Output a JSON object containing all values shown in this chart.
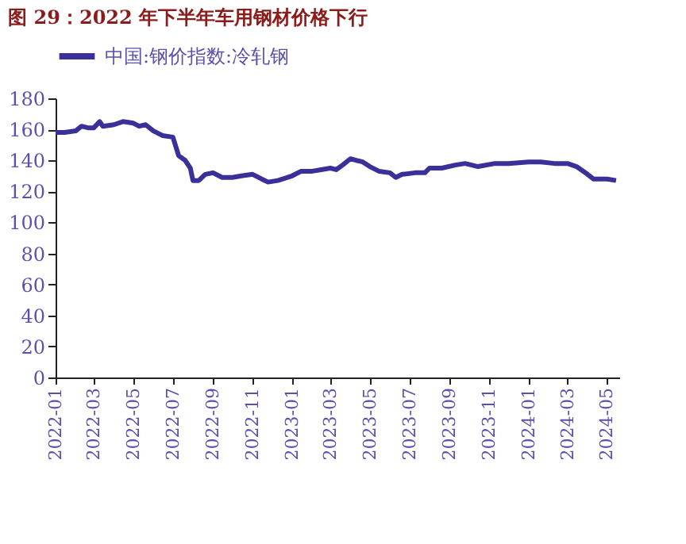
{
  "chart_data": {
    "type": "line",
    "title": "图 29：2022 年下半年车用钢材价格下行",
    "x": [
      "2022-01-01",
      "2022-01-15",
      "2022-02-01",
      "2022-02-10",
      "2022-02-20",
      "2022-03-01",
      "2022-03-10",
      "2022-03-15",
      "2022-04-01",
      "2022-04-15",
      "2022-05-01",
      "2022-05-10",
      "2022-05-20",
      "2022-06-01",
      "2022-06-15",
      "2022-07-01",
      "2022-07-10",
      "2022-07-20",
      "2022-07-28",
      "2022-08-01",
      "2022-08-10",
      "2022-08-20",
      "2022-09-01",
      "2022-09-15",
      "2022-10-01",
      "2022-10-15",
      "2022-11-01",
      "2022-11-15",
      "2022-11-25",
      "2022-12-10",
      "2023-01-01",
      "2023-01-15",
      "2023-02-01",
      "2023-02-15",
      "2023-03-01",
      "2023-03-10",
      "2023-03-20",
      "2023-04-01",
      "2023-04-10",
      "2023-04-20",
      "2023-05-01",
      "2023-05-15",
      "2023-06-01",
      "2023-06-10",
      "2023-06-20",
      "2023-07-10",
      "2023-07-25",
      "2023-08-01",
      "2023-08-20",
      "2023-09-10",
      "2023-09-25",
      "2023-10-15",
      "2023-11-10",
      "2023-12-01",
      "2024-01-01",
      "2024-01-20",
      "2024-02-10",
      "2024-03-01",
      "2024-03-15",
      "2024-04-01",
      "2024-04-10",
      "2024-05-01",
      "2024-05-15"
    ],
    "series": [
      {
        "name": "中国:钢价指数:冷轧钢",
        "color": "#3b2f9a",
        "values": [
          158,
          158,
          159,
          162,
          161,
          161,
          165,
          162,
          163,
          165,
          164,
          162,
          163,
          159,
          156,
          155,
          143,
          140,
          135,
          127,
          127,
          131,
          132,
          129,
          129,
          130,
          131,
          128,
          126,
          127,
          130,
          133,
          133,
          134,
          135,
          134,
          137,
          141,
          140,
          139,
          136,
          133,
          132,
          129,
          131,
          132,
          132,
          135,
          135,
          137,
          138,
          136,
          138,
          138,
          139,
          139,
          138,
          138,
          136,
          131,
          128,
          128,
          127
        ]
      }
    ],
    "xlim": [
      "2022-01-01",
      "2024-05-20"
    ],
    "xticks": [
      "2022-01",
      "2022-03",
      "2022-05",
      "2022-07",
      "2022-09",
      "2022-11",
      "2023-01",
      "2023-03",
      "2023-05",
      "2023-07",
      "2023-09",
      "2023-11",
      "2024-01",
      "2024-03",
      "2024-05"
    ],
    "ylim": [
      0,
      180
    ],
    "yticks": [
      0,
      20,
      40,
      60,
      80,
      100,
      120,
      140,
      160,
      180
    ],
    "grid": false,
    "legend": "top",
    "line_style": "solid",
    "marker": "none"
  }
}
